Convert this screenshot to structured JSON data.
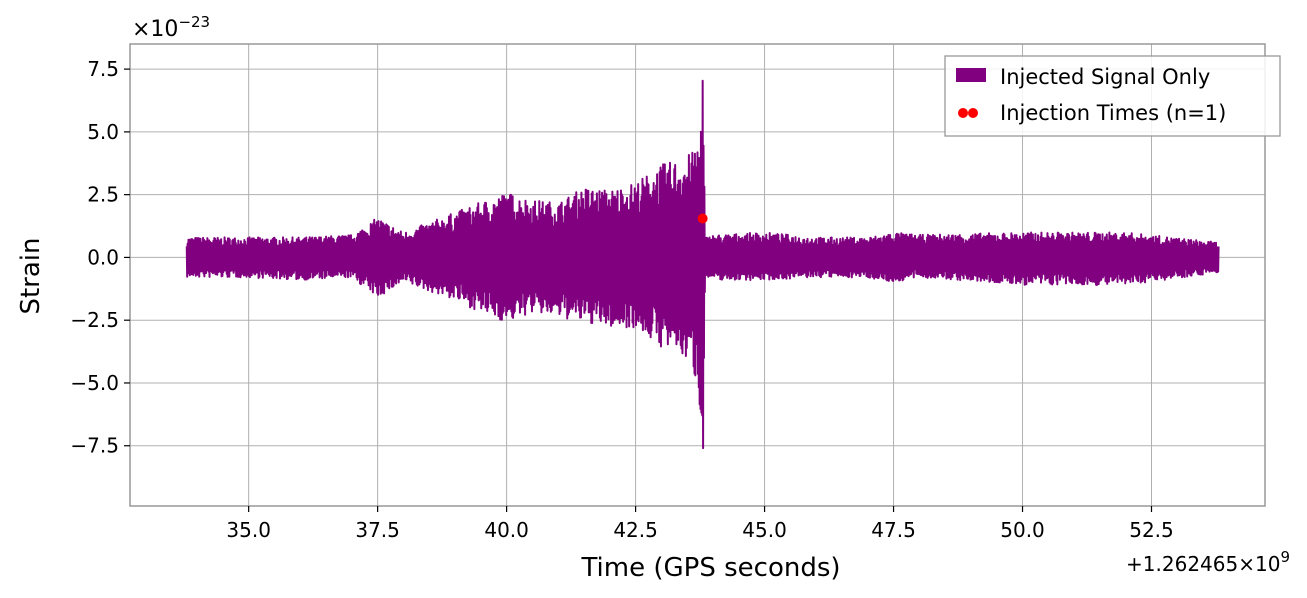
{
  "chart_data": {
    "type": "line",
    "xlabel": "Time (GPS seconds)",
    "ylabel": "Strain",
    "x_offset_label": "+1.262465×10",
    "x_offset_exp": "9",
    "y_scale_label": "×10",
    "y_scale_exp": "−23",
    "xlim": [
      32.7,
      54.7
    ],
    "ylim": [
      -9.9,
      8.5
    ],
    "x_ticks": [
      35.0,
      37.5,
      40.0,
      42.5,
      45.0,
      47.5,
      50.0,
      52.5
    ],
    "x_tick_labels": [
      "35.0",
      "37.5",
      "40.0",
      "42.5",
      "45.0",
      "47.5",
      "50.0",
      "52.5"
    ],
    "y_ticks": [
      -7.5,
      -5.0,
      -2.5,
      0.0,
      2.5,
      5.0,
      7.5
    ],
    "y_tick_labels": [
      "−7.5",
      "−5.0",
      "−2.5",
      "0.0",
      "2.5",
      "5.0",
      "7.5"
    ],
    "grid": true,
    "legend_position": "top-right",
    "series": [
      {
        "name": "Injected Signal Only",
        "kind": "line",
        "color": "#800080",
        "x_range": [
          33.8,
          53.8
        ],
        "envelope_x": [
          33.8,
          35.0,
          36.0,
          37.0,
          37.5,
          38.0,
          39.0,
          39.5,
          40.0,
          40.5,
          41.0,
          41.5,
          42.0,
          42.5,
          43.0,
          43.3,
          43.6,
          43.75,
          43.8,
          43.85,
          44.0,
          45.0,
          46.0,
          47.0,
          47.5,
          48.0,
          50.0,
          52.0,
          53.8
        ],
        "envelope_upper": [
          0.8,
          0.8,
          0.8,
          0.9,
          1.6,
          1.0,
          1.8,
          2.2,
          2.6,
          2.3,
          2.2,
          2.8,
          2.7,
          3.0,
          3.7,
          3.9,
          4.2,
          5.0,
          7.7,
          0.8,
          0.9,
          1.0,
          0.8,
          0.8,
          1.0,
          0.9,
          1.0,
          1.0,
          0.6
        ],
        "envelope_lower": [
          -0.8,
          -0.8,
          -0.9,
          -0.8,
          -1.6,
          -1.0,
          -1.7,
          -2.2,
          -2.6,
          -2.2,
          -2.4,
          -2.6,
          -2.8,
          -2.8,
          -3.6,
          -3.8,
          -4.3,
          -6.0,
          -9.0,
          -0.8,
          -0.9,
          -0.9,
          -0.8,
          -0.8,
          -1.0,
          -0.8,
          -1.1,
          -1.1,
          -0.6
        ]
      },
      {
        "name": "Injection Times (n=1)",
        "kind": "scatter",
        "color": "#ff0000",
        "x": [
          43.8
        ],
        "y": [
          1.55
        ]
      }
    ]
  }
}
